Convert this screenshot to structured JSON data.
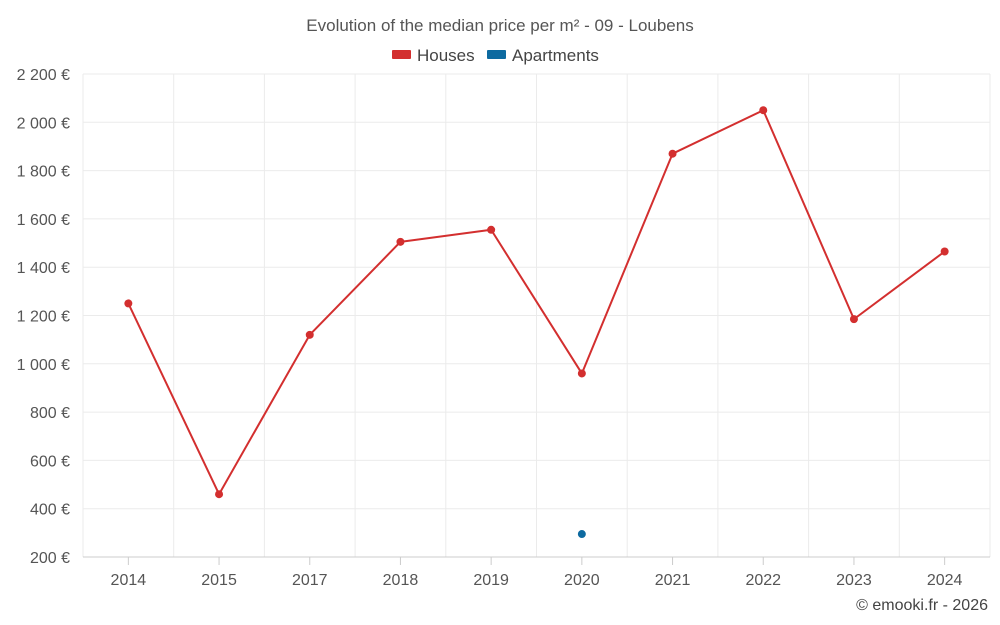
{
  "chart_data": {
    "type": "line",
    "title": "Evolution of the median price per m² - 09 - Loubens",
    "categories": [
      "2014",
      "2015",
      "2017",
      "2018",
      "2019",
      "2020",
      "2021",
      "2022",
      "2023",
      "2024"
    ],
    "y_ticks": [
      "200 €",
      "400 €",
      "600 €",
      "800 €",
      "1 000 €",
      "1 200 €",
      "1 400 €",
      "1 600 €",
      "1 800 €",
      "2 000 €",
      "2 200 €"
    ],
    "ylim": [
      200,
      2200
    ],
    "xlabel": "",
    "ylabel": "",
    "legend_position": "top-center",
    "series": [
      {
        "name": "Houses",
        "color": "#d32f2f",
        "values": [
          1250,
          460,
          1120,
          1505,
          1555,
          960,
          1870,
          2050,
          1185,
          1465
        ]
      },
      {
        "name": "Apartments",
        "color": "#0d6aa0",
        "values": [
          null,
          null,
          null,
          null,
          null,
          295,
          null,
          null,
          null,
          null
        ]
      }
    ]
  },
  "credit": "© emooki.fr - 2026"
}
